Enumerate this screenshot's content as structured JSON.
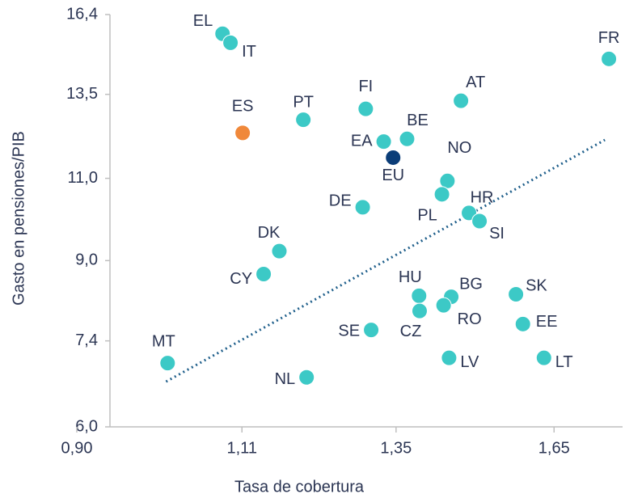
{
  "chart_data": {
    "type": "scatter",
    "xlabel": "Tasa de cobertura",
    "ylabel": "Gasto en pensiones/PIB",
    "xscale": "log",
    "yscale": "log",
    "grid": false,
    "xlim": [
      0.9,
      1.8
    ],
    "ylim": [
      6.0,
      16.4
    ],
    "xticks": [
      {
        "value": 0.9,
        "label": "0,90"
      },
      {
        "value": 1.11,
        "label": "1,11"
      },
      {
        "value": 1.35,
        "label": "1,35"
      },
      {
        "value": 1.65,
        "label": "1,65"
      }
    ],
    "yticks": [
      {
        "value": 6.0,
        "label": "6,0"
      },
      {
        "value": 7.4,
        "label": "7,4"
      },
      {
        "value": 9.0,
        "label": "9,0"
      },
      {
        "value": 11.0,
        "label": "11,0"
      },
      {
        "value": 13.5,
        "label": "13,5"
      },
      {
        "value": 16.4,
        "label": "16,4"
      }
    ],
    "point_labels": [
      "EL",
      "IT",
      "FR",
      "ES",
      "PT",
      "FI",
      "AT",
      "EA",
      "BE",
      "EU",
      "NO",
      "PL",
      "DE",
      "HR",
      "SI",
      "DK",
      "CY",
      "HU",
      "BG",
      "RO",
      "CZ",
      "SK",
      "EE",
      "SE",
      "LV",
      "LT",
      "MT",
      "NL"
    ],
    "x": [
      1.083,
      1.094,
      1.769,
      1.111,
      1.2,
      1.299,
      1.466,
      1.329,
      1.369,
      1.345,
      1.441,
      1.431,
      1.294,
      1.481,
      1.501,
      1.164,
      1.141,
      1.39,
      1.448,
      1.434,
      1.391,
      1.572,
      1.586,
      1.308,
      1.444,
      1.629,
      1.01,
      1.205
    ],
    "values": [
      15.65,
      15.31,
      14.72,
      12.29,
      12.69,
      13.03,
      13.29,
      12.03,
      12.11,
      11.57,
      10.93,
      10.58,
      10.25,
      10.11,
      9.91,
      9.21,
      8.71,
      8.26,
      8.24,
      8.07,
      7.96,
      8.29,
      7.71,
      7.6,
      7.1,
      7.1,
      7.01,
      6.77
    ],
    "colors": [
      "#3cc9c6",
      "#3cc9c6",
      "#3cc9c6",
      "#f0883a",
      "#3cc9c6",
      "#3cc9c6",
      "#3cc9c6",
      "#3cc9c6",
      "#3cc9c6",
      "#0b3d78",
      "#3cc9c6",
      "#3cc9c6",
      "#3cc9c6",
      "#3cc9c6",
      "#3cc9c6",
      "#3cc9c6",
      "#3cc9c6",
      "#3cc9c6",
      "#3cc9c6",
      "#3cc9c6",
      "#3cc9c6",
      "#3cc9c6",
      "#3cc9c6",
      "#3cc9c6",
      "#3cc9c6",
      "#3cc9c6",
      "#3cc9c6",
      "#3cc9c6"
    ],
    "trendline": {
      "x": [
        1.008,
        1.76
      ],
      "values": [
        6.7,
        12.08
      ],
      "color": "#1f5f8b"
    }
  }
}
